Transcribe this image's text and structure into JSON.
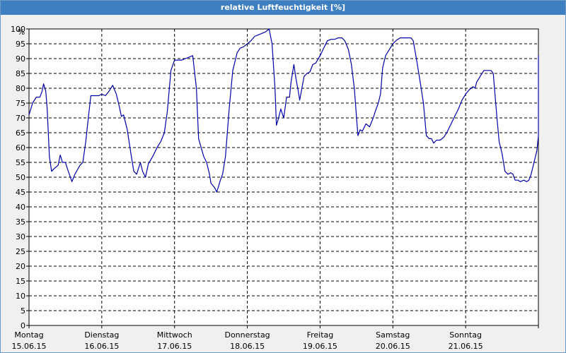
{
  "chart_data": {
    "type": "line",
    "title": "relative Luftfeuchtigkeit [%]",
    "ylabel": "%",
    "ylim": [
      0,
      100
    ],
    "yticks": [
      0,
      5,
      10,
      15,
      20,
      25,
      30,
      35,
      40,
      45,
      50,
      55,
      60,
      65,
      70,
      75,
      80,
      85,
      90,
      95,
      100
    ],
    "xlim": [
      0,
      7
    ],
    "grid": true,
    "x_categories": [
      {
        "day": "Montag",
        "date": "15.06.15"
      },
      {
        "day": "Dienstag",
        "date": "16.06.15"
      },
      {
        "day": "Mittwoch",
        "date": "17.06.15"
      },
      {
        "day": "Donnerstag",
        "date": "18.06.15"
      },
      {
        "day": "Freitag",
        "date": "19.06.15"
      },
      {
        "day": "Samstag",
        "date": "20.06.15"
      },
      {
        "day": "Sonntag",
        "date": "21.06.15"
      }
    ],
    "series": [
      {
        "color": "#0000aa",
        "points": [
          [
            0.0,
            71
          ],
          [
            0.05,
            75
          ],
          [
            0.1,
            77
          ],
          [
            0.15,
            77
          ],
          [
            0.18,
            79
          ],
          [
            0.2,
            81.5
          ],
          [
            0.23,
            79
          ],
          [
            0.25,
            73
          ],
          [
            0.28,
            57
          ],
          [
            0.31,
            52
          ],
          [
            0.35,
            53
          ],
          [
            0.4,
            54
          ],
          [
            0.43,
            57.5
          ],
          [
            0.46,
            55
          ],
          [
            0.5,
            55
          ],
          [
            0.54,
            52
          ],
          [
            0.59,
            48.5
          ],
          [
            0.63,
            51
          ],
          [
            0.7,
            54
          ],
          [
            0.74,
            55
          ],
          [
            0.78,
            62
          ],
          [
            0.82,
            71
          ],
          [
            0.85,
            77.5
          ],
          [
            0.9,
            77.5
          ],
          [
            0.96,
            77.5
          ],
          [
            1.0,
            78
          ],
          [
            1.05,
            77.5
          ],
          [
            1.1,
            79
          ],
          [
            1.15,
            81
          ],
          [
            1.2,
            78
          ],
          [
            1.23,
            75
          ],
          [
            1.27,
            70.5
          ],
          [
            1.3,
            71
          ],
          [
            1.35,
            66
          ],
          [
            1.4,
            58
          ],
          [
            1.44,
            52
          ],
          [
            1.48,
            51
          ],
          [
            1.53,
            55
          ],
          [
            1.56,
            52
          ],
          [
            1.6,
            50
          ],
          [
            1.64,
            54.5
          ],
          [
            1.7,
            57
          ],
          [
            1.76,
            60
          ],
          [
            1.81,
            62
          ],
          [
            1.86,
            65
          ],
          [
            1.9,
            72
          ],
          [
            1.95,
            86
          ],
          [
            2.0,
            89.5
          ],
          [
            2.05,
            89.5
          ],
          [
            2.1,
            89.5
          ],
          [
            2.15,
            90
          ],
          [
            2.2,
            90.5
          ],
          [
            2.25,
            91
          ],
          [
            2.3,
            80
          ],
          [
            2.33,
            63
          ],
          [
            2.4,
            57
          ],
          [
            2.44,
            55
          ],
          [
            2.48,
            51
          ],
          [
            2.5,
            48
          ],
          [
            2.55,
            46.5
          ],
          [
            2.58,
            45
          ],
          [
            2.63,
            49
          ],
          [
            2.66,
            51
          ],
          [
            2.7,
            57
          ],
          [
            2.75,
            73
          ],
          [
            2.8,
            86
          ],
          [
            2.86,
            92
          ],
          [
            2.9,
            93.5
          ],
          [
            2.95,
            94
          ],
          [
            3.0,
            95
          ],
          [
            3.05,
            96
          ],
          [
            3.1,
            97.5
          ],
          [
            3.15,
            98
          ],
          [
            3.2,
            98.5
          ],
          [
            3.25,
            99
          ],
          [
            3.3,
            100
          ],
          [
            3.34,
            95
          ],
          [
            3.38,
            80
          ],
          [
            3.4,
            67.5
          ],
          [
            3.43,
            70
          ],
          [
            3.46,
            73
          ],
          [
            3.5,
            70
          ],
          [
            3.54,
            77
          ],
          [
            3.58,
            77
          ],
          [
            3.6,
            82
          ],
          [
            3.64,
            88
          ],
          [
            3.67,
            83
          ],
          [
            3.7,
            79
          ],
          [
            3.72,
            76
          ],
          [
            3.75,
            80
          ],
          [
            3.78,
            84
          ],
          [
            3.82,
            85
          ],
          [
            3.86,
            85.5
          ],
          [
            3.9,
            88
          ],
          [
            3.94,
            88.5
          ],
          [
            4.0,
            91
          ],
          [
            4.04,
            93
          ],
          [
            4.1,
            96
          ],
          [
            4.15,
            96.5
          ],
          [
            4.2,
            96.5
          ],
          [
            4.25,
            97
          ],
          [
            4.3,
            97
          ],
          [
            4.34,
            96
          ],
          [
            4.39,
            93
          ],
          [
            4.43,
            88
          ],
          [
            4.47,
            80
          ],
          [
            4.52,
            64
          ],
          [
            4.55,
            66
          ],
          [
            4.58,
            65.5
          ],
          [
            4.63,
            68
          ],
          [
            4.68,
            67
          ],
          [
            4.73,
            70
          ],
          [
            4.77,
            73
          ],
          [
            4.8,
            75
          ],
          [
            4.83,
            78
          ],
          [
            4.86,
            87
          ],
          [
            4.9,
            91
          ],
          [
            4.95,
            93
          ],
          [
            5.0,
            95
          ],
          [
            5.04,
            96
          ],
          [
            5.1,
            97
          ],
          [
            5.15,
            97
          ],
          [
            5.2,
            97
          ],
          [
            5.25,
            97
          ],
          [
            5.28,
            96
          ],
          [
            5.33,
            89
          ],
          [
            5.37,
            83
          ],
          [
            5.42,
            75
          ],
          [
            5.46,
            64
          ],
          [
            5.5,
            63
          ],
          [
            5.53,
            63
          ],
          [
            5.56,
            61.5
          ],
          [
            5.6,
            62.5
          ],
          [
            5.65,
            62.5
          ],
          [
            5.7,
            63.5
          ],
          [
            5.74,
            65
          ],
          [
            5.8,
            68
          ],
          [
            5.86,
            71
          ],
          [
            5.9,
            73
          ],
          [
            5.95,
            76
          ],
          [
            6.0,
            78
          ],
          [
            6.05,
            79.5
          ],
          [
            6.1,
            80.5
          ],
          [
            6.13,
            80
          ],
          [
            6.15,
            82
          ],
          [
            6.2,
            84
          ],
          [
            6.25,
            86
          ],
          [
            6.3,
            86
          ],
          [
            6.35,
            86
          ],
          [
            6.38,
            85
          ],
          [
            6.43,
            70
          ],
          [
            6.46,
            62
          ],
          [
            6.5,
            58
          ],
          [
            6.54,
            52
          ],
          [
            6.58,
            51
          ],
          [
            6.62,
            51.5
          ],
          [
            6.65,
            51
          ],
          [
            6.68,
            49
          ],
          [
            6.72,
            49
          ],
          [
            6.75,
            48.5
          ],
          [
            6.8,
            49
          ],
          [
            6.84,
            48.5
          ],
          [
            6.87,
            49
          ],
          [
            6.9,
            51
          ],
          [
            6.94,
            55
          ],
          [
            6.98,
            59
          ],
          [
            7.03,
            64
          ],
          [
            7.07,
            70
          ],
          [
            7.1,
            80
          ],
          [
            7.13,
            87
          ],
          [
            7.16,
            91
          ]
        ]
      }
    ]
  }
}
